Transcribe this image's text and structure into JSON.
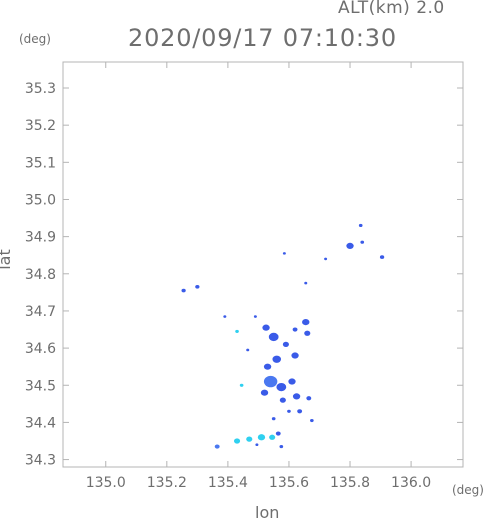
{
  "header": {
    "alt_label": "ALT(km) 2.0",
    "timestamp": "2020/09/17 07:10:30"
  },
  "axes": {
    "y_unit": "(deg)",
    "x_unit": "(deg)",
    "x_label": "lon",
    "y_label": "lat",
    "x_ticks": [
      "135.0",
      "135.2",
      "135.4",
      "135.6",
      "135.8",
      "136.0"
    ],
    "y_ticks": [
      "35.3",
      "35.2",
      "35.1",
      "35.0",
      "34.9",
      "34.8",
      "34.7",
      "34.6",
      "34.5",
      "34.4",
      "34.3"
    ],
    "x_range": [
      134.86,
      136.17
    ],
    "y_range": [
      34.28,
      35.37
    ]
  },
  "colors": {
    "frame": "#b4b4b4",
    "echo_strong": "#3a5be8",
    "echo_medium": "#4a78f0",
    "echo_light": "#2fd0f0"
  },
  "echo_cells": [
    {
      "lon": 135.835,
      "lat": 34.93,
      "r": 0.006,
      "level": "strong"
    },
    {
      "lon": 135.8,
      "lat": 34.875,
      "r": 0.012,
      "level": "strong"
    },
    {
      "lon": 135.84,
      "lat": 34.885,
      "r": 0.006,
      "level": "strong"
    },
    {
      "lon": 135.905,
      "lat": 34.845,
      "r": 0.007,
      "level": "strong"
    },
    {
      "lon": 135.72,
      "lat": 34.84,
      "r": 0.004,
      "level": "strong"
    },
    {
      "lon": 135.585,
      "lat": 34.855,
      "r": 0.003,
      "level": "strong"
    },
    {
      "lon": 135.655,
      "lat": 34.775,
      "r": 0.003,
      "level": "strong"
    },
    {
      "lon": 135.255,
      "lat": 34.755,
      "r": 0.007,
      "level": "strong"
    },
    {
      "lon": 135.3,
      "lat": 34.765,
      "r": 0.007,
      "level": "strong"
    },
    {
      "lon": 135.39,
      "lat": 34.685,
      "r": 0.005,
      "level": "strong"
    },
    {
      "lon": 135.49,
      "lat": 34.685,
      "r": 0.005,
      "level": "strong"
    },
    {
      "lon": 135.43,
      "lat": 34.645,
      "r": 0.006,
      "level": "light"
    },
    {
      "lon": 135.525,
      "lat": 34.655,
      "r": 0.012,
      "level": "strong"
    },
    {
      "lon": 135.55,
      "lat": 34.63,
      "r": 0.016,
      "level": "strong"
    },
    {
      "lon": 135.655,
      "lat": 34.67,
      "r": 0.012,
      "level": "strong"
    },
    {
      "lon": 135.66,
      "lat": 34.64,
      "r": 0.01,
      "level": "strong"
    },
    {
      "lon": 135.62,
      "lat": 34.65,
      "r": 0.008,
      "level": "strong"
    },
    {
      "lon": 135.59,
      "lat": 34.61,
      "r": 0.01,
      "level": "strong"
    },
    {
      "lon": 135.62,
      "lat": 34.58,
      "r": 0.012,
      "level": "strong"
    },
    {
      "lon": 135.56,
      "lat": 34.57,
      "r": 0.014,
      "level": "strong"
    },
    {
      "lon": 135.53,
      "lat": 34.55,
      "r": 0.012,
      "level": "strong"
    },
    {
      "lon": 135.465,
      "lat": 34.595,
      "r": 0.005,
      "level": "strong"
    },
    {
      "lon": 135.54,
      "lat": 34.51,
      "r": 0.022,
      "level": "medium"
    },
    {
      "lon": 135.575,
      "lat": 34.495,
      "r": 0.016,
      "level": "strong"
    },
    {
      "lon": 135.61,
      "lat": 34.51,
      "r": 0.012,
      "level": "strong"
    },
    {
      "lon": 135.52,
      "lat": 34.48,
      "r": 0.012,
      "level": "strong"
    },
    {
      "lon": 135.58,
      "lat": 34.46,
      "r": 0.01,
      "level": "strong"
    },
    {
      "lon": 135.625,
      "lat": 34.47,
      "r": 0.012,
      "level": "strong"
    },
    {
      "lon": 135.665,
      "lat": 34.465,
      "r": 0.008,
      "level": "strong"
    },
    {
      "lon": 135.635,
      "lat": 34.43,
      "r": 0.008,
      "level": "strong"
    },
    {
      "lon": 135.675,
      "lat": 34.405,
      "r": 0.006,
      "level": "strong"
    },
    {
      "lon": 135.6,
      "lat": 34.43,
      "r": 0.006,
      "level": "strong"
    },
    {
      "lon": 135.55,
      "lat": 34.41,
      "r": 0.006,
      "level": "strong"
    },
    {
      "lon": 135.445,
      "lat": 34.5,
      "r": 0.006,
      "level": "light"
    },
    {
      "lon": 135.565,
      "lat": 34.37,
      "r": 0.008,
      "level": "strong"
    },
    {
      "lon": 135.365,
      "lat": 34.335,
      "r": 0.008,
      "level": "medium"
    },
    {
      "lon": 135.43,
      "lat": 34.35,
      "r": 0.01,
      "level": "light"
    },
    {
      "lon": 135.47,
      "lat": 34.355,
      "r": 0.01,
      "level": "light"
    },
    {
      "lon": 135.51,
      "lat": 34.36,
      "r": 0.012,
      "level": "light"
    },
    {
      "lon": 135.545,
      "lat": 34.36,
      "r": 0.01,
      "level": "light"
    },
    {
      "lon": 135.575,
      "lat": 34.335,
      "r": 0.006,
      "level": "strong"
    },
    {
      "lon": 135.495,
      "lat": 34.34,
      "r": 0.004,
      "level": "strong"
    }
  ]
}
